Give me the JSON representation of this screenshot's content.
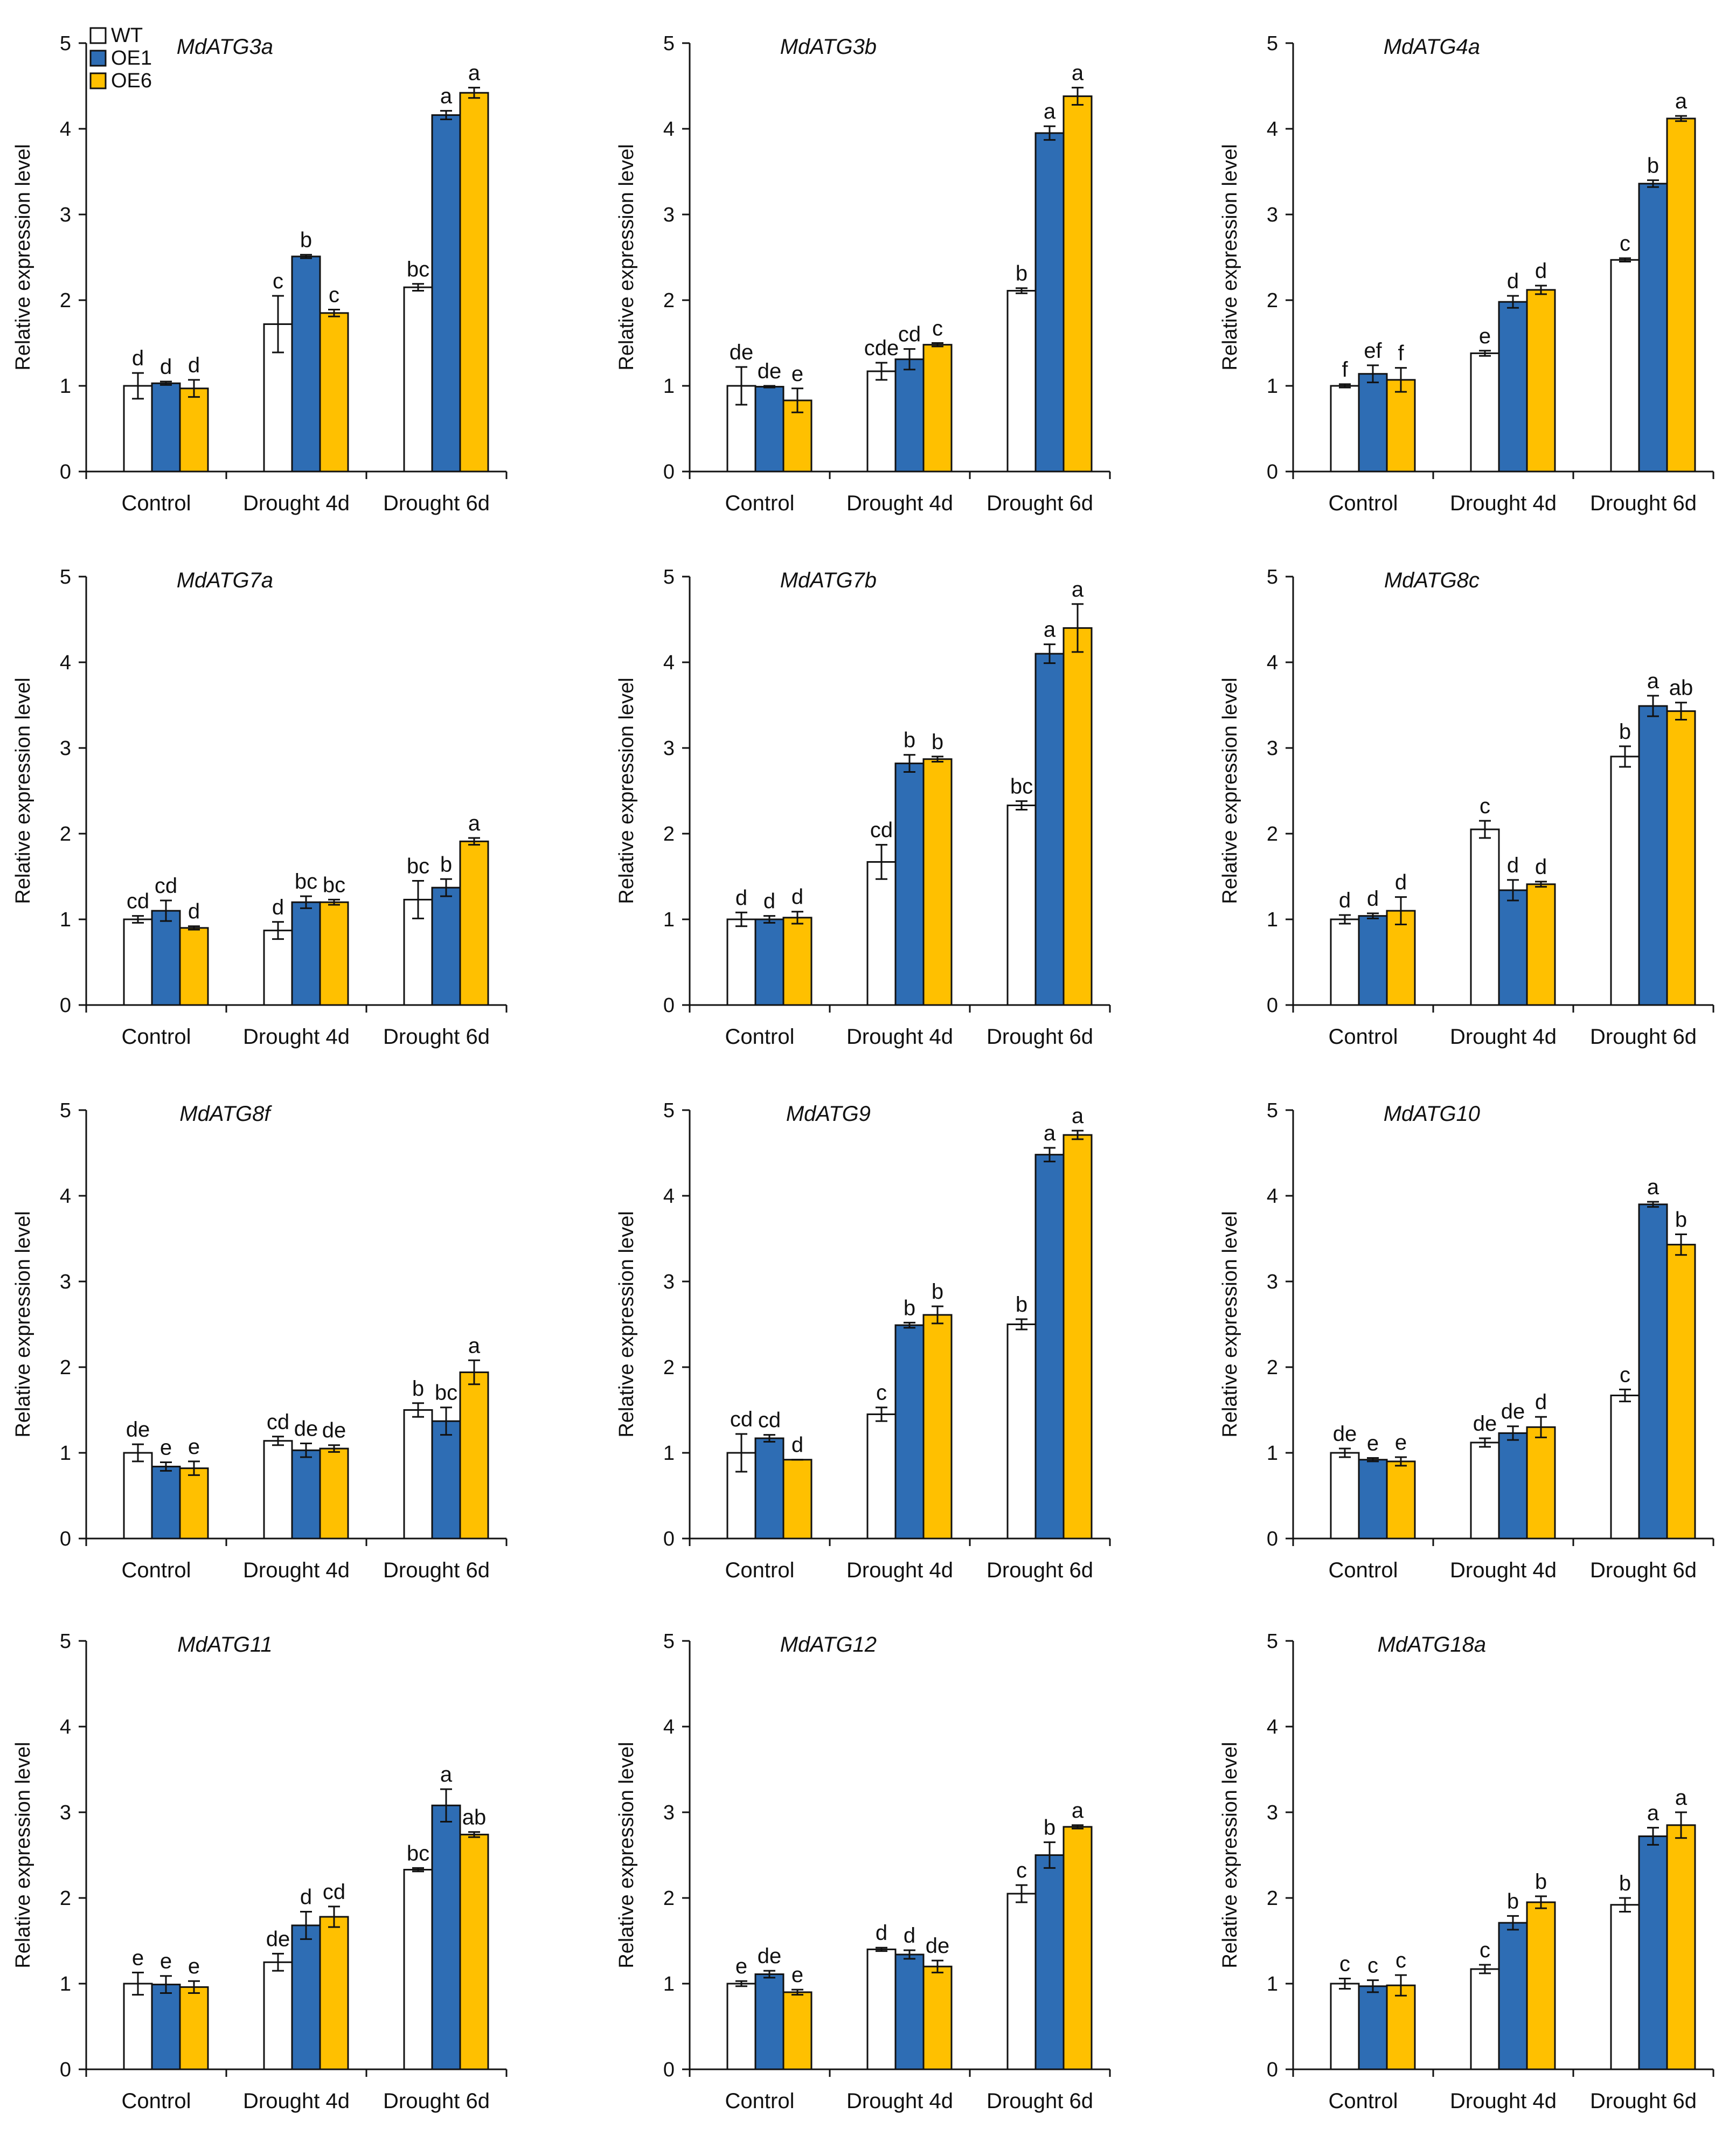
{
  "figure": {
    "colors": {
      "WT": "#ffffff",
      "OE1": "#2e6db4",
      "OE6": "#ffc000",
      "outline": "#111111"
    },
    "legend": [
      {
        "name": "WT",
        "color": "#ffffff"
      },
      {
        "name": "OE1",
        "color": "#2e6db4"
      },
      {
        "name": "OE6",
        "color": "#ffc000"
      }
    ]
  },
  "chart_data": [
    {
      "type": "bar",
      "title": "MdATG3a",
      "ylabel": "Relative expression level",
      "ylim": [
        0,
        5
      ],
      "yticks": [
        0,
        1,
        2,
        3,
        4,
        5
      ],
      "categories": [
        "Control",
        "Drought 4d",
        "Drought 6d"
      ],
      "series": [
        {
          "name": "WT",
          "values": [
            1.0,
            1.72,
            2.15
          ],
          "errors": [
            0.15,
            0.33,
            0.04
          ],
          "letters": [
            "d",
            "c",
            "bc"
          ]
        },
        {
          "name": "OE1",
          "values": [
            1.03,
            2.51,
            4.16
          ],
          "errors": [
            0.02,
            0.02,
            0.05
          ],
          "letters": [
            "d",
            "b",
            "a"
          ]
        },
        {
          "name": "OE6",
          "values": [
            0.97,
            1.85,
            4.42
          ],
          "errors": [
            0.1,
            0.04,
            0.06
          ],
          "letters": [
            "d",
            "c",
            "a"
          ]
        }
      ]
    },
    {
      "type": "bar",
      "title": "MdATG3b",
      "ylabel": "Relative expression level",
      "ylim": [
        0,
        5
      ],
      "yticks": [
        0,
        1,
        2,
        3,
        4,
        5
      ],
      "categories": [
        "Control",
        "Drought 4d",
        "Drought 6d"
      ],
      "series": [
        {
          "name": "WT",
          "values": [
            1.0,
            1.17,
            2.11
          ],
          "errors": [
            0.22,
            0.1,
            0.03
          ],
          "letters": [
            "de",
            "cde",
            "b"
          ]
        },
        {
          "name": "OE1",
          "values": [
            0.99,
            1.31,
            3.95
          ],
          "errors": [
            0.01,
            0.12,
            0.08
          ],
          "letters": [
            "de",
            "cd",
            "a"
          ]
        },
        {
          "name": "OE6",
          "values": [
            0.83,
            1.48,
            4.38
          ],
          "errors": [
            0.14,
            0.02,
            0.1
          ],
          "letters": [
            "e",
            "c",
            "a"
          ]
        }
      ]
    },
    {
      "type": "bar",
      "title": "MdATG4a",
      "ylabel": "Relative expression level",
      "ylim": [
        0,
        5
      ],
      "yticks": [
        0,
        1,
        2,
        3,
        4,
        5
      ],
      "categories": [
        "Control",
        "Drought 4d",
        "Drought 6d"
      ],
      "series": [
        {
          "name": "WT",
          "values": [
            1.0,
            1.38,
            2.47
          ],
          "errors": [
            0.02,
            0.03,
            0.02
          ],
          "letters": [
            "f",
            "e",
            "c"
          ]
        },
        {
          "name": "OE1",
          "values": [
            1.14,
            1.98,
            3.36
          ],
          "errors": [
            0.1,
            0.07,
            0.04
          ],
          "letters": [
            "ef",
            "d",
            "b"
          ]
        },
        {
          "name": "OE6",
          "values": [
            1.07,
            2.12,
            4.12
          ],
          "errors": [
            0.14,
            0.05,
            0.03
          ],
          "letters": [
            "f",
            "d",
            "a"
          ]
        }
      ]
    },
    {
      "type": "bar",
      "title": "MdATG7a",
      "ylabel": "Relative expression level",
      "ylim": [
        0,
        5
      ],
      "yticks": [
        0,
        1,
        2,
        3,
        4,
        5
      ],
      "categories": [
        "Control",
        "Drought 4d",
        "Drought 6d"
      ],
      "series": [
        {
          "name": "WT",
          "values": [
            1.0,
            0.87,
            1.23
          ],
          "errors": [
            0.04,
            0.1,
            0.22
          ],
          "letters": [
            "cd",
            "d",
            "bc"
          ]
        },
        {
          "name": "OE1",
          "values": [
            1.1,
            1.2,
            1.37
          ],
          "errors": [
            0.12,
            0.07,
            0.1
          ],
          "letters": [
            "cd",
            "bc",
            "b"
          ]
        },
        {
          "name": "OE6",
          "values": [
            0.9,
            1.2,
            1.91
          ],
          "errors": [
            0.02,
            0.03,
            0.04
          ],
          "letters": [
            "d",
            "bc",
            "a"
          ]
        }
      ]
    },
    {
      "type": "bar",
      "title": "MdATG7b",
      "ylabel": "Relative expression level",
      "ylim": [
        0,
        5
      ],
      "yticks": [
        0,
        1,
        2,
        3,
        4,
        5
      ],
      "categories": [
        "Control",
        "Drought 4d",
        "Drought 6d"
      ],
      "series": [
        {
          "name": "WT",
          "values": [
            1.0,
            1.67,
            2.33
          ],
          "errors": [
            0.08,
            0.2,
            0.05
          ],
          "letters": [
            "d",
            "cd",
            "bc"
          ]
        },
        {
          "name": "OE1",
          "values": [
            1.0,
            2.82,
            4.1
          ],
          "errors": [
            0.04,
            0.1,
            0.11
          ],
          "letters": [
            "d",
            "b",
            "a"
          ]
        },
        {
          "name": "OE6",
          "values": [
            1.02,
            2.87,
            4.4
          ],
          "errors": [
            0.07,
            0.03,
            0.28
          ],
          "letters": [
            "d",
            "b",
            "a"
          ]
        }
      ]
    },
    {
      "type": "bar",
      "title": "MdATG8c",
      "ylabel": "Relative expression level",
      "ylim": [
        0,
        5
      ],
      "yticks": [
        0,
        1,
        2,
        3,
        4,
        5
      ],
      "categories": [
        "Control",
        "Drought 4d",
        "Drought 6d"
      ],
      "series": [
        {
          "name": "WT",
          "values": [
            1.0,
            2.05,
            2.9
          ],
          "errors": [
            0.05,
            0.1,
            0.12
          ],
          "letters": [
            "d",
            "c",
            "b"
          ]
        },
        {
          "name": "OE1",
          "values": [
            1.04,
            1.34,
            3.49
          ],
          "errors": [
            0.03,
            0.12,
            0.12
          ],
          "letters": [
            "d",
            "d",
            "a"
          ]
        },
        {
          "name": "OE6",
          "values": [
            1.1,
            1.41,
            3.43
          ],
          "errors": [
            0.16,
            0.03,
            0.1
          ],
          "letters": [
            "d",
            "d",
            "ab"
          ]
        }
      ]
    },
    {
      "type": "bar",
      "title": "MdATG8f",
      "ylabel": "Relative expression level",
      "ylim": [
        0,
        5
      ],
      "yticks": [
        0,
        1,
        2,
        3,
        4,
        5
      ],
      "categories": [
        "Control",
        "Drought 4d",
        "Drought 6d"
      ],
      "series": [
        {
          "name": "WT",
          "values": [
            1.0,
            1.14,
            1.5
          ],
          "errors": [
            0.1,
            0.05,
            0.08
          ],
          "letters": [
            "de",
            "cd",
            "b"
          ]
        },
        {
          "name": "OE1",
          "values": [
            0.84,
            1.03,
            1.37
          ],
          "errors": [
            0.05,
            0.08,
            0.16
          ],
          "letters": [
            "e",
            "de",
            "bc"
          ]
        },
        {
          "name": "OE6",
          "values": [
            0.82,
            1.05,
            1.94
          ],
          "errors": [
            0.08,
            0.04,
            0.14
          ],
          "letters": [
            "e",
            "de",
            "a"
          ]
        }
      ]
    },
    {
      "type": "bar",
      "title": "MdATG9",
      "ylabel": "Relative expression level",
      "ylim": [
        0,
        5
      ],
      "yticks": [
        0,
        1,
        2,
        3,
        4,
        5
      ],
      "categories": [
        "Control",
        "Drought 4d",
        "Drought 6d"
      ],
      "series": [
        {
          "name": "WT",
          "values": [
            1.0,
            1.45,
            2.5
          ],
          "errors": [
            0.22,
            0.08,
            0.06
          ],
          "letters": [
            "cd",
            "c",
            "b"
          ]
        },
        {
          "name": "OE1",
          "values": [
            1.17,
            2.49,
            4.48
          ],
          "errors": [
            0.04,
            0.03,
            0.08
          ],
          "letters": [
            "cd",
            "b",
            "a"
          ]
        },
        {
          "name": "OE6",
          "values": [
            0.92,
            2.61,
            4.71
          ],
          "errors": [
            0.0,
            0.1,
            0.05
          ],
          "letters": [
            "d",
            "b",
            "a"
          ]
        }
      ]
    },
    {
      "type": "bar",
      "title": "MdATG10",
      "ylabel": "Relative expression level",
      "ylim": [
        0,
        5
      ],
      "yticks": [
        0,
        1,
        2,
        3,
        4,
        5
      ],
      "categories": [
        "Control",
        "Drought 4d",
        "Drought 6d"
      ],
      "series": [
        {
          "name": "WT",
          "values": [
            1.0,
            1.12,
            1.67
          ],
          "errors": [
            0.05,
            0.05,
            0.07
          ],
          "letters": [
            "de",
            "de",
            "c"
          ]
        },
        {
          "name": "OE1",
          "values": [
            0.92,
            1.23,
            3.9
          ],
          "errors": [
            0.02,
            0.08,
            0.03
          ],
          "letters": [
            "e",
            "de",
            "a"
          ]
        },
        {
          "name": "OE6",
          "values": [
            0.9,
            1.3,
            3.43
          ],
          "errors": [
            0.05,
            0.12,
            0.12
          ],
          "letters": [
            "e",
            "d",
            "b"
          ]
        }
      ]
    },
    {
      "type": "bar",
      "title": "MdATG11",
      "ylabel": "Relative expression level",
      "ylim": [
        0,
        5
      ],
      "yticks": [
        0,
        1,
        2,
        3,
        4,
        5
      ],
      "categories": [
        "Control",
        "Drought 4d",
        "Drought 6d"
      ],
      "series": [
        {
          "name": "WT",
          "values": [
            1.0,
            1.25,
            2.33
          ],
          "errors": [
            0.13,
            0.1,
            0.02
          ],
          "letters": [
            "e",
            "de",
            "bc"
          ]
        },
        {
          "name": "OE1",
          "values": [
            0.99,
            1.68,
            3.08
          ],
          "errors": [
            0.1,
            0.16,
            0.19
          ],
          "letters": [
            "e",
            "d",
            "a"
          ]
        },
        {
          "name": "OE6",
          "values": [
            0.96,
            1.78,
            2.74
          ],
          "errors": [
            0.07,
            0.12,
            0.03
          ],
          "letters": [
            "e",
            "cd",
            "ab"
          ]
        }
      ]
    },
    {
      "type": "bar",
      "title": "MdATG12",
      "ylabel": "Relative expression level",
      "ylim": [
        0,
        5
      ],
      "yticks": [
        0,
        1,
        2,
        3,
        4,
        5
      ],
      "categories": [
        "Control",
        "Drought 4d",
        "Drought 6d"
      ],
      "series": [
        {
          "name": "WT",
          "values": [
            1.0,
            1.4,
            2.05
          ],
          "errors": [
            0.03,
            0.02,
            0.1
          ],
          "letters": [
            "e",
            "d",
            "c"
          ]
        },
        {
          "name": "OE1",
          "values": [
            1.11,
            1.34,
            2.5
          ],
          "errors": [
            0.04,
            0.05,
            0.15
          ],
          "letters": [
            "de",
            "d",
            "b"
          ]
        },
        {
          "name": "OE6",
          "values": [
            0.9,
            1.2,
            2.83
          ],
          "errors": [
            0.03,
            0.07,
            0.02
          ],
          "letters": [
            "e",
            "de",
            "a"
          ]
        }
      ]
    },
    {
      "type": "bar",
      "title": "MdATG18a",
      "ylabel": "Relative expression level",
      "ylim": [
        0,
        5
      ],
      "yticks": [
        0,
        1,
        2,
        3,
        4,
        5
      ],
      "categories": [
        "Control",
        "Drought 4d",
        "Drought 6d"
      ],
      "series": [
        {
          "name": "WT",
          "values": [
            1.0,
            1.17,
            1.92
          ],
          "errors": [
            0.06,
            0.05,
            0.08
          ],
          "letters": [
            "c",
            "c",
            "b"
          ]
        },
        {
          "name": "OE1",
          "values": [
            0.97,
            1.71,
            2.72
          ],
          "errors": [
            0.07,
            0.08,
            0.1
          ],
          "letters": [
            "c",
            "b",
            "a"
          ]
        },
        {
          "name": "OE6",
          "values": [
            0.98,
            1.95,
            2.85
          ],
          "errors": [
            0.12,
            0.07,
            0.15
          ],
          "letters": [
            "c",
            "b",
            "a"
          ]
        }
      ]
    }
  ]
}
